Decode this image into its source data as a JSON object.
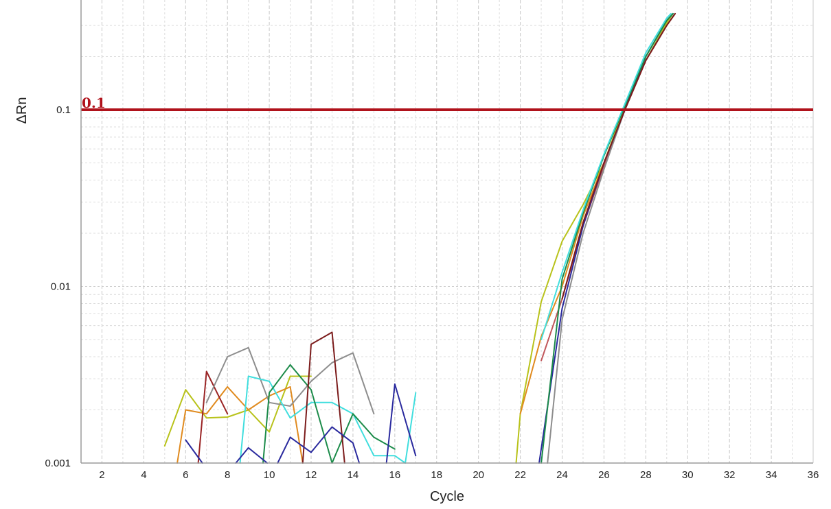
{
  "chart_data": {
    "type": "line",
    "xlabel": "Cycle",
    "ylabel": "ΔRn",
    "xlim": [
      1,
      36
    ],
    "ylim": [
      0.001,
      0.35
    ],
    "yscale": "log",
    "grid": true,
    "x_ticks": [
      "2",
      "4",
      "6",
      "8",
      "10",
      "12",
      "14",
      "16",
      "18",
      "20",
      "22",
      "24",
      "26",
      "28",
      "30",
      "32",
      "34",
      "36"
    ],
    "y_ticks": [
      {
        "value": 0.001,
        "label": "0.001"
      },
      {
        "value": 0.01,
        "label": "0.01"
      },
      {
        "value": 0.1,
        "label": "0.1"
      }
    ],
    "threshold": {
      "value": 0.1,
      "label": "0.1",
      "color": "#b0121b"
    },
    "series": [
      {
        "color": "#b8c21a",
        "points": [
          [
            5,
            0.00125
          ],
          [
            6,
            0.0026
          ],
          [
            7,
            0.0018
          ],
          [
            8,
            0.00182
          ],
          [
            9,
            0.002
          ],
          [
            10,
            0.0015
          ],
          [
            11,
            0.0031
          ],
          [
            12,
            0.0031
          ]
        ]
      },
      {
        "color": "#e08a1e",
        "points": [
          [
            5.6,
            0.001
          ],
          [
            6,
            0.002
          ],
          [
            7,
            0.0019
          ],
          [
            8,
            0.0027
          ],
          [
            9,
            0.002
          ],
          [
            10,
            0.0024
          ],
          [
            11,
            0.0027
          ],
          [
            11.6,
            0.001
          ]
        ]
      },
      {
        "color": "#9a2526",
        "points": [
          [
            6.6,
            0.001
          ],
          [
            7,
            0.0033
          ],
          [
            8,
            0.0019
          ]
        ]
      },
      {
        "color": "#8d8d8d",
        "points": [
          [
            7,
            0.0022
          ],
          [
            8,
            0.004
          ],
          [
            9,
            0.0045
          ],
          [
            10,
            0.0022
          ],
          [
            11,
            0.0021
          ],
          [
            12,
            0.0029
          ],
          [
            13,
            0.0037
          ],
          [
            14,
            0.0042
          ],
          [
            15,
            0.0019
          ]
        ]
      },
      {
        "color": "#40dede",
        "points": [
          [
            8.6,
            0.001
          ],
          [
            9,
            0.0031
          ],
          [
            10,
            0.0029
          ],
          [
            11,
            0.0018
          ],
          [
            12,
            0.0022
          ],
          [
            13,
            0.0022
          ],
          [
            14,
            0.0019
          ],
          [
            15,
            0.0011
          ],
          [
            16,
            0.0011
          ],
          [
            16.5,
            0.001
          ],
          [
            17,
            0.0025
          ]
        ]
      },
      {
        "color": "#1c8b4a",
        "points": [
          [
            9.7,
            0.001
          ],
          [
            10,
            0.0025
          ],
          [
            11,
            0.0036
          ],
          [
            12,
            0.0026
          ],
          [
            13,
            0.001
          ],
          [
            14,
            0.0019
          ],
          [
            15,
            0.0014
          ],
          [
            16,
            0.0012
          ]
        ]
      },
      {
        "color": "#7c1c1c",
        "points": [
          [
            11.6,
            0.001
          ],
          [
            12,
            0.0047
          ],
          [
            13,
            0.0055
          ],
          [
            13.6,
            0.001
          ]
        ]
      },
      {
        "color": "#2a2a9e",
        "points": [
          [
            6,
            0.00135
          ],
          [
            6.8,
            0.001
          ]
        ]
      },
      {
        "color": "#2a2a9e",
        "points": [
          [
            8.4,
            0.001
          ],
          [
            9,
            0.00122
          ],
          [
            9.9,
            0.001
          ]
        ]
      },
      {
        "color": "#2a2a9e",
        "points": [
          [
            10.4,
            0.001
          ],
          [
            11,
            0.0014
          ],
          [
            12,
            0.00115
          ],
          [
            13,
            0.0016
          ],
          [
            14,
            0.0013
          ],
          [
            14.3,
            0.001
          ]
        ]
      },
      {
        "color": "#2a2a9e",
        "points": [
          [
            15.6,
            0.001
          ],
          [
            16,
            0.0028
          ],
          [
            17,
            0.0011
          ]
        ]
      },
      {
        "color": "#b8c21a",
        "points": [
          [
            21.8,
            0.001
          ],
          [
            22,
            0.0019
          ],
          [
            23,
            0.0082
          ],
          [
            24,
            0.018
          ],
          [
            25,
            0.029
          ],
          [
            26,
            0.05
          ],
          [
            27,
            0.105
          ],
          [
            28,
            0.19
          ],
          [
            29,
            0.31
          ],
          [
            29.3,
            0.35
          ]
        ]
      },
      {
        "color": "#e08a1e",
        "points": [
          [
            22,
            0.0019
          ],
          [
            23,
            0.0052
          ],
          [
            24,
            0.01
          ],
          [
            25,
            0.025
          ],
          [
            26,
            0.05
          ],
          [
            27,
            0.1
          ],
          [
            28,
            0.19
          ],
          [
            29,
            0.3
          ],
          [
            29.4,
            0.35
          ]
        ]
      },
      {
        "color": "#c0565a",
        "points": [
          [
            23,
            0.0038
          ],
          [
            24,
            0.0085
          ],
          [
            25,
            0.022
          ],
          [
            26,
            0.048
          ],
          [
            27,
            0.1
          ],
          [
            28,
            0.19
          ],
          [
            29,
            0.3
          ],
          [
            29.4,
            0.35
          ]
        ]
      },
      {
        "color": "#8d8d8d",
        "points": [
          [
            23.3,
            0.001
          ],
          [
            24,
            0.0065
          ],
          [
            25,
            0.02
          ],
          [
            26,
            0.046
          ],
          [
            27,
            0.1
          ],
          [
            28,
            0.19
          ],
          [
            29,
            0.3
          ],
          [
            29.4,
            0.35
          ]
        ]
      },
      {
        "color": "#2a2a9e",
        "points": [
          [
            22.9,
            0.001
          ],
          [
            23.5,
            0.003
          ],
          [
            24,
            0.0075
          ],
          [
            25,
            0.022
          ],
          [
            26,
            0.05
          ],
          [
            27,
            0.1
          ],
          [
            28,
            0.2
          ],
          [
            29,
            0.32
          ],
          [
            29.3,
            0.35
          ]
        ]
      },
      {
        "color": "#1c8b4a",
        "points": [
          [
            23,
            0.001
          ],
          [
            24,
            0.011
          ],
          [
            25,
            0.026
          ],
          [
            26,
            0.055
          ],
          [
            27,
            0.105
          ],
          [
            28,
            0.2
          ],
          [
            29,
            0.32
          ],
          [
            29.3,
            0.35
          ]
        ]
      },
      {
        "color": "#40dede",
        "points": [
          [
            23,
            0.005
          ],
          [
            24,
            0.012
          ],
          [
            25,
            0.027
          ],
          [
            26,
            0.056
          ],
          [
            27,
            0.108
          ],
          [
            28,
            0.21
          ],
          [
            29,
            0.33
          ],
          [
            29.2,
            0.35
          ]
        ]
      },
      {
        "color": "#7c1c1c",
        "points": [
          [
            24,
            0.0085
          ],
          [
            25,
            0.023
          ],
          [
            26,
            0.05
          ],
          [
            27,
            0.1
          ],
          [
            28,
            0.19
          ],
          [
            29,
            0.3
          ],
          [
            29.4,
            0.35
          ]
        ]
      }
    ]
  }
}
